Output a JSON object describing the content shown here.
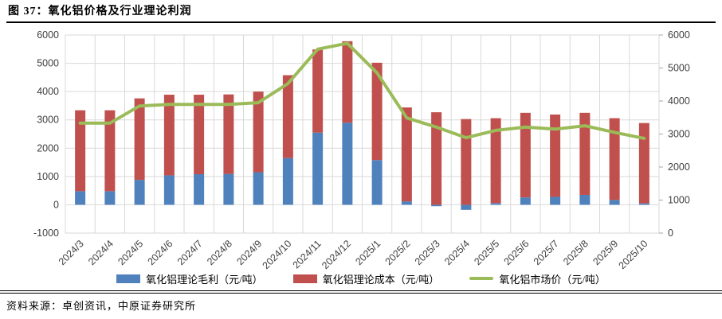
{
  "figure": {
    "title": "图 37：氧化铝价格及行业理论利润",
    "source": "资料来源：卓创资讯，中原证券研究所"
  },
  "colors": {
    "profit_bar": "#4F81BD",
    "cost_bar": "#C0504D",
    "price_line": "#9BBB59",
    "gridline": "#D9D9D9",
    "axis_tick": "#A6A6A6",
    "axis_text": "#404040"
  },
  "chart_data": {
    "type": "bar",
    "subtype": "stacked-bars-with-line",
    "categories": [
      "2024/3",
      "2024/4",
      "2024/5",
      "2024/6",
      "2024/7",
      "2024/8",
      "2024/9",
      "2024/10",
      "2024/11",
      "2024/12",
      "2025/1",
      "2025/2",
      "2025/3",
      "2025/4",
      "2025/5",
      "2025/6",
      "2025/7",
      "2025/8",
      "2025/9",
      "2025/10"
    ],
    "series": [
      {
        "name": "氧化铝理论毛利（元/吨）",
        "type": "bar",
        "axis": "left",
        "color": "#4F81BD",
        "values": [
          480,
          480,
          880,
          1040,
          1080,
          1090,
          1150,
          1650,
          2550,
          2900,
          1580,
          120,
          -50,
          -180,
          60,
          260,
          280,
          350,
          170,
          50
        ]
      },
      {
        "name": "氧化铝理论成本（元/吨）",
        "type": "bar",
        "axis": "left",
        "color": "#C0504D",
        "values": [
          2860,
          2860,
          2880,
          2850,
          2810,
          2810,
          2850,
          2930,
          2940,
          2880,
          3440,
          3320,
          3270,
          3030,
          3000,
          2990,
          2910,
          2900,
          2890,
          2840
        ]
      },
      {
        "name": "氧化铝市场价（元/吨）",
        "type": "line",
        "axis": "right",
        "color": "#9BBB59",
        "values": [
          3330,
          3330,
          3850,
          3900,
          3900,
          3900,
          3950,
          4530,
          5570,
          5750,
          4850,
          3490,
          3210,
          2890,
          3110,
          3210,
          3150,
          3250,
          3050,
          2870
        ]
      }
    ],
    "left_axis": {
      "min": -1000,
      "max": 6000,
      "step": 1000
    },
    "right_axis": {
      "min": 0,
      "max": 6000,
      "step": 1000
    },
    "grid": true,
    "legend_position": "bottom"
  }
}
